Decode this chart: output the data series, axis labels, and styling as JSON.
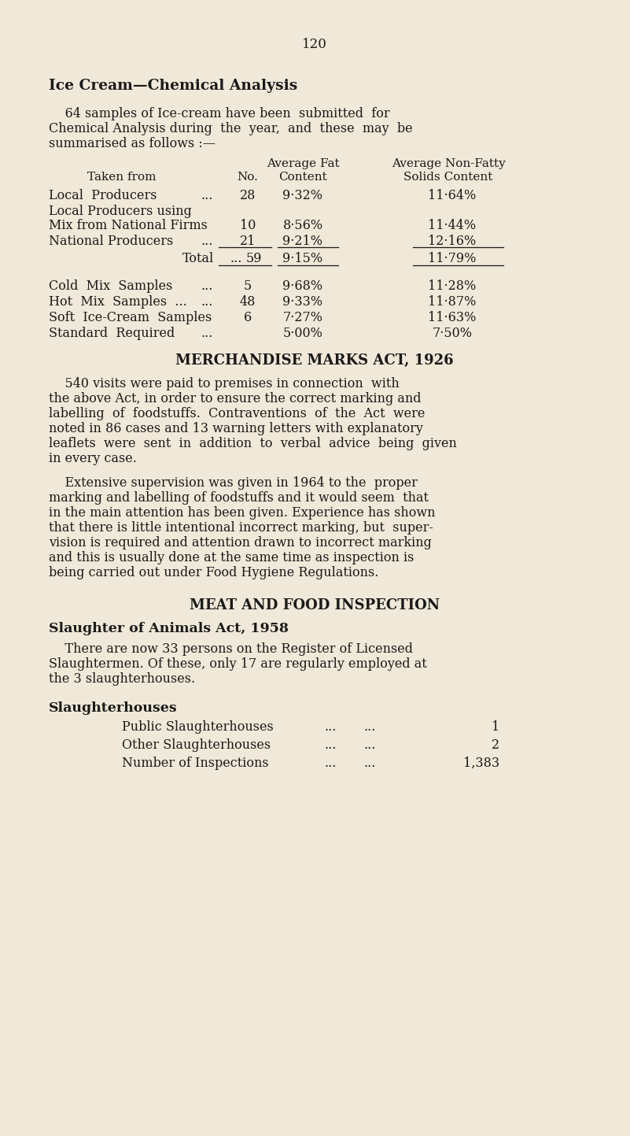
{
  "bg_color": "#f0e8d8",
  "text_color": "#1a1a1a",
  "page_number": "120",
  "title": "Ice Cream—Chemical Analysis",
  "intro_lines": [
    "    64 samples of Ice-cream have been  submitted  for",
    "Chemical Analysis during  the  year,  and  these  may  be",
    "summarised as follows :—"
  ],
  "th1_fat": "Average Fat",
  "th1_nonfat": "Average Non-Fatty",
  "th2_takenfrom": "Taken from",
  "th2_no": "No.",
  "th2_content": "Content",
  "th2_solids": "Solids Content",
  "section2_title": "MERCHANDISE MARKS ACT, 1926",
  "s2p1_lines": [
    "    540 visits were paid to premises in connection  with",
    "the above Act, in order to ensure the correct marking and",
    "labelling  of  foodstuffs.  Contraventions  of  the  Act  were",
    "noted in 86 cases and 13 warning letters with explanatory",
    "leaflets  were  sent  in  addition  to  verbal  advice  being  given",
    "in every case."
  ],
  "s2p2_lines": [
    "    Extensive supervision was given in 1964 to the  proper",
    "marking and labelling of foodstuffs and it would seem  that",
    "in the main attention has been given. Experience has shown",
    "that there is little intentional incorrect marking, but  super-",
    "vision is required and attention drawn to incorrect marking",
    "and this is usually done at the same time as inspection is",
    "being carried out under Food Hygiene Regulations."
  ],
  "section3_title": "MEAT AND FOOD INSPECTION",
  "section3_subtitle": "Slaughter of Animals Act, 1958",
  "s3p_lines": [
    "    There are now 33 persons on the Register of Licensed",
    "Slaughtermen. Of these, only 17 are regularly employed at",
    "the 3 slaughterhouses."
  ],
  "section3_sub2": "Slaughterhouses",
  "slaughterhouse_rows": [
    [
      "Public Slaughterhouses",
      "...",
      "...",
      "1"
    ],
    [
      "Other Slaughterhouses",
      "...",
      "...",
      "2"
    ],
    [
      "Number of Inspections",
      "...",
      "...",
      "1,383"
    ]
  ]
}
